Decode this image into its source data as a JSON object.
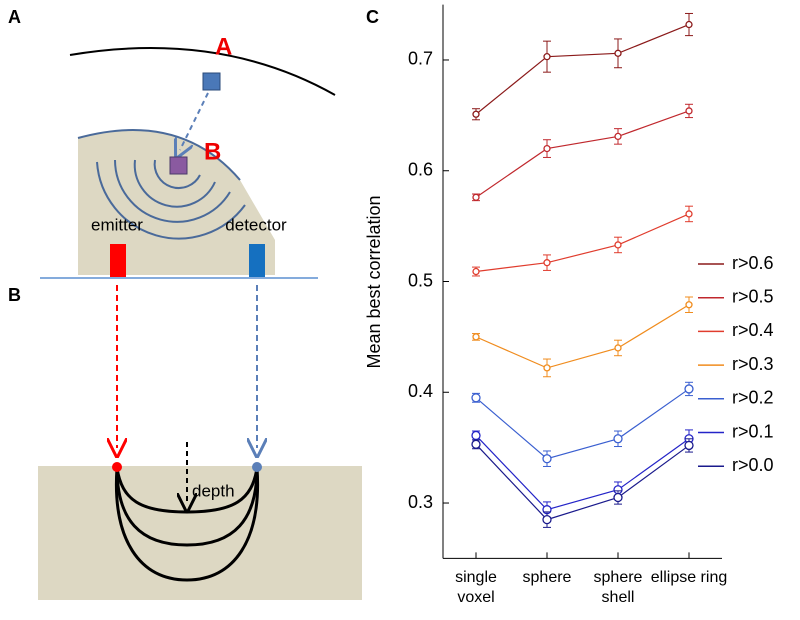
{
  "diagram": {
    "panels": [
      "A",
      "B",
      "C"
    ],
    "points": [
      "A",
      "B"
    ],
    "emitter": "emitter",
    "detector": "detector",
    "depth": "depth"
  },
  "chart_data": {
    "type": "line",
    "ylabel": "Mean best correlation",
    "categories": [
      "single voxel",
      "sphere",
      "sphere shell",
      "ellipse ring"
    ],
    "ylim": [
      0.25,
      0.75
    ],
    "yticks": [
      0.3,
      0.4,
      0.5,
      0.6,
      0.7
    ],
    "series": [
      {
        "name": "r>0.6",
        "color": "#8b1a1a",
        "values": [
          0.651,
          0.703,
          0.706,
          0.732
        ],
        "errors": [
          0.005,
          0.014,
          0.013,
          0.01
        ]
      },
      {
        "name": "r>0.5",
        "color": "#c0282d",
        "values": [
          0.576,
          0.62,
          0.631,
          0.654
        ],
        "errors": [
          0.003,
          0.008,
          0.007,
          0.006
        ]
      },
      {
        "name": "r>0.4",
        "color": "#e03c2d",
        "values": [
          0.509,
          0.517,
          0.533,
          0.561
        ],
        "errors": [
          0.004,
          0.007,
          0.007,
          0.007
        ]
      },
      {
        "name": "r>0.3",
        "color": "#f08c1e",
        "values": [
          0.45,
          0.422,
          0.44,
          0.479
        ],
        "errors": [
          0.003,
          0.008,
          0.007,
          0.007
        ]
      },
      {
        "name": "r>0.2",
        "color": "#3a5fd0",
        "values": [
          0.395,
          0.34,
          0.358,
          0.403
        ],
        "errors": [
          0.004,
          0.007,
          0.007,
          0.006
        ]
      },
      {
        "name": "r>0.1",
        "color": "#2424c8",
        "values": [
          0.361,
          0.294,
          0.312,
          0.358
        ],
        "errors": [
          0.004,
          0.007,
          0.007,
          0.008
        ]
      },
      {
        "name": "r>0.0",
        "color": "#1a1a8c",
        "values": [
          0.353,
          0.285,
          0.305,
          0.352
        ],
        "errors": [
          0.004,
          0.007,
          0.006,
          0.006
        ]
      }
    ]
  }
}
